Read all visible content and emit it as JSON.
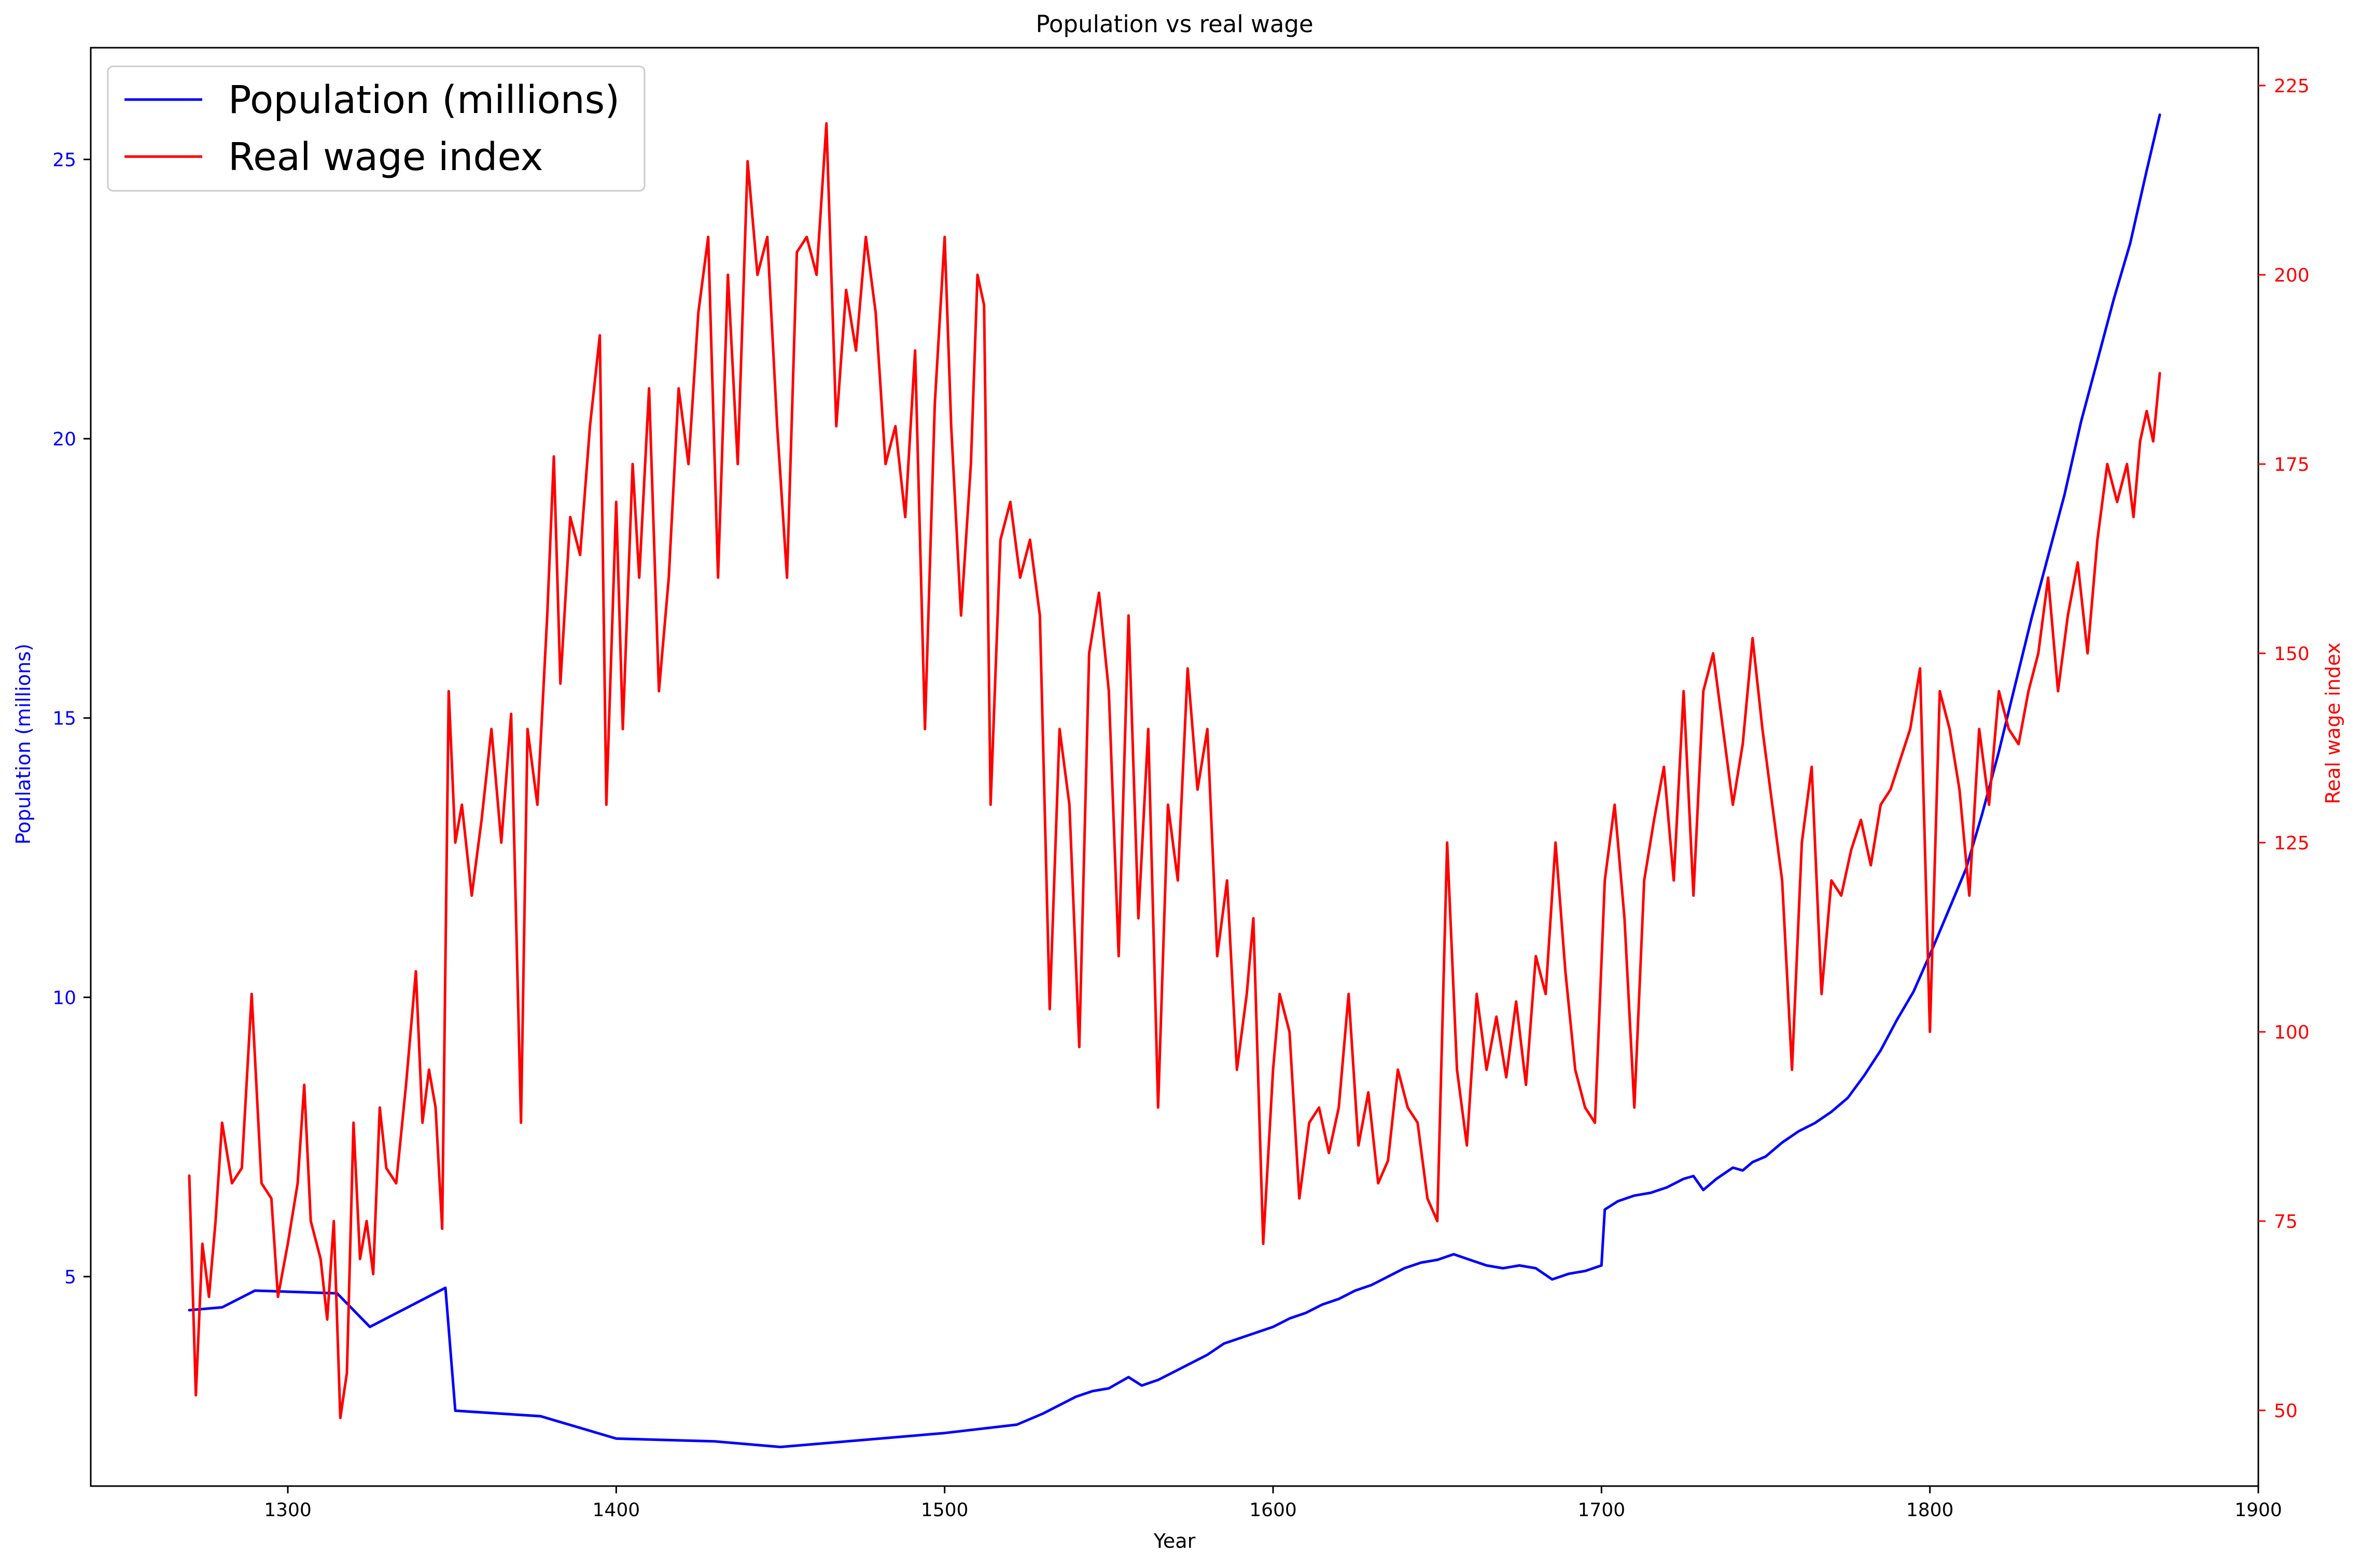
{
  "chart_data": {
    "type": "line",
    "title": "Population vs real wage",
    "xlabel": "Year",
    "y_left_label": "Population (millions)",
    "y_right_label": "Real wage index",
    "xlim": [
      1240,
      1900
    ],
    "y_left_lim": [
      1.25,
      27.0
    ],
    "y_right_lim": [
      40,
      230
    ],
    "x_ticks": [
      1300,
      1400,
      1500,
      1600,
      1700,
      1800,
      1900
    ],
    "y_left_ticks": [
      5,
      10,
      15,
      20,
      25
    ],
    "y_right_ticks": [
      50,
      75,
      100,
      125,
      150,
      175,
      200,
      225
    ],
    "legend_position": "top-left",
    "colors": {
      "population": "#0000ff",
      "wage": "#ff0000"
    },
    "series": [
      {
        "name": "Population (millions)",
        "axis": "left",
        "color": "#0000ff",
        "points": [
          [
            1270,
            4.4
          ],
          [
            1280,
            4.45
          ],
          [
            1290,
            4.75
          ],
          [
            1300,
            4.73
          ],
          [
            1315,
            4.7
          ],
          [
            1325,
            4.1
          ],
          [
            1348,
            4.8
          ],
          [
            1351,
            2.6
          ],
          [
            1377,
            2.5
          ],
          [
            1400,
            2.1
          ],
          [
            1430,
            2.05
          ],
          [
            1450,
            1.95
          ],
          [
            1500,
            2.2
          ],
          [
            1522,
            2.35
          ],
          [
            1530,
            2.55
          ],
          [
            1540,
            2.85
          ],
          [
            1545,
            2.95
          ],
          [
            1550,
            3.0
          ],
          [
            1556,
            3.2
          ],
          [
            1560,
            3.05
          ],
          [
            1565,
            3.15
          ],
          [
            1570,
            3.3
          ],
          [
            1575,
            3.45
          ],
          [
            1580,
            3.6
          ],
          [
            1585,
            3.8
          ],
          [
            1590,
            3.9
          ],
          [
            1595,
            4.0
          ],
          [
            1600,
            4.1
          ],
          [
            1605,
            4.25
          ],
          [
            1610,
            4.35
          ],
          [
            1615,
            4.5
          ],
          [
            1620,
            4.6
          ],
          [
            1625,
            4.75
          ],
          [
            1630,
            4.85
          ],
          [
            1635,
            5.0
          ],
          [
            1640,
            5.15
          ],
          [
            1645,
            5.25
          ],
          [
            1650,
            5.3
          ],
          [
            1655,
            5.4
          ],
          [
            1660,
            5.3
          ],
          [
            1665,
            5.2
          ],
          [
            1670,
            5.15
          ],
          [
            1675,
            5.2
          ],
          [
            1680,
            5.15
          ],
          [
            1685,
            4.95
          ],
          [
            1690,
            5.05
          ],
          [
            1695,
            5.1
          ],
          [
            1700,
            5.2
          ],
          [
            1701,
            6.2
          ],
          [
            1705,
            6.35
          ],
          [
            1710,
            6.45
          ],
          [
            1715,
            6.5
          ],
          [
            1720,
            6.6
          ],
          [
            1725,
            6.75
          ],
          [
            1728,
            6.8
          ],
          [
            1731,
            6.55
          ],
          [
            1735,
            6.75
          ],
          [
            1740,
            6.95
          ],
          [
            1743,
            6.9
          ],
          [
            1746,
            7.05
          ],
          [
            1750,
            7.15
          ],
          [
            1755,
            7.4
          ],
          [
            1760,
            7.6
          ],
          [
            1765,
            7.75
          ],
          [
            1770,
            7.95
          ],
          [
            1775,
            8.2
          ],
          [
            1780,
            8.6
          ],
          [
            1785,
            9.05
          ],
          [
            1790,
            9.6
          ],
          [
            1795,
            10.1
          ],
          [
            1801,
            10.9
          ],
          [
            1806,
            11.6
          ],
          [
            1811,
            12.3
          ],
          [
            1816,
            13.3
          ],
          [
            1821,
            14.4
          ],
          [
            1826,
            15.6
          ],
          [
            1831,
            16.8
          ],
          [
            1836,
            17.9
          ],
          [
            1841,
            19.0
          ],
          [
            1846,
            20.3
          ],
          [
            1851,
            21.4
          ],
          [
            1856,
            22.5
          ],
          [
            1861,
            23.5
          ],
          [
            1866,
            24.8
          ],
          [
            1870,
            25.8
          ]
        ]
      },
      {
        "name": "Real wage index",
        "axis": "right",
        "color": "#ff0000",
        "points": [
          [
            1270,
            81
          ],
          [
            1272,
            52
          ],
          [
            1274,
            72
          ],
          [
            1276,
            65
          ],
          [
            1278,
            75
          ],
          [
            1280,
            88
          ],
          [
            1283,
            80
          ],
          [
            1286,
            82
          ],
          [
            1289,
            105
          ],
          [
            1292,
            80
          ],
          [
            1295,
            78
          ],
          [
            1297,
            65
          ],
          [
            1300,
            72
          ],
          [
            1303,
            80
          ],
          [
            1305,
            93
          ],
          [
            1307,
            75
          ],
          [
            1310,
            70
          ],
          [
            1312,
            62
          ],
          [
            1314,
            75
          ],
          [
            1316,
            49
          ],
          [
            1318,
            55
          ],
          [
            1320,
            88
          ],
          [
            1322,
            70
          ],
          [
            1324,
            75
          ],
          [
            1326,
            68
          ],
          [
            1328,
            90
          ],
          [
            1330,
            82
          ],
          [
            1333,
            80
          ],
          [
            1336,
            93
          ],
          [
            1339,
            108
          ],
          [
            1341,
            88
          ],
          [
            1343,
            95
          ],
          [
            1345,
            90
          ],
          [
            1347,
            74
          ],
          [
            1349,
            145
          ],
          [
            1351,
            125
          ],
          [
            1353,
            130
          ],
          [
            1356,
            118
          ],
          [
            1359,
            128
          ],
          [
            1362,
            140
          ],
          [
            1365,
            125
          ],
          [
            1368,
            142
          ],
          [
            1371,
            88
          ],
          [
            1373,
            140
          ],
          [
            1376,
            130
          ],
          [
            1379,
            155
          ],
          [
            1381,
            176
          ],
          [
            1383,
            146
          ],
          [
            1386,
            168
          ],
          [
            1389,
            163
          ],
          [
            1392,
            180
          ],
          [
            1395,
            192
          ],
          [
            1397,
            130
          ],
          [
            1400,
            170
          ],
          [
            1402,
            140
          ],
          [
            1405,
            175
          ],
          [
            1407,
            160
          ],
          [
            1410,
            185
          ],
          [
            1413,
            145
          ],
          [
            1416,
            160
          ],
          [
            1419,
            185
          ],
          [
            1422,
            175
          ],
          [
            1425,
            195
          ],
          [
            1428,
            205
          ],
          [
            1431,
            160
          ],
          [
            1434,
            200
          ],
          [
            1437,
            175
          ],
          [
            1440,
            215
          ],
          [
            1443,
            200
          ],
          [
            1446,
            205
          ],
          [
            1449,
            180
          ],
          [
            1452,
            160
          ],
          [
            1455,
            203
          ],
          [
            1458,
            205
          ],
          [
            1461,
            200
          ],
          [
            1464,
            220
          ],
          [
            1467,
            180
          ],
          [
            1470,
            198
          ],
          [
            1473,
            190
          ],
          [
            1476,
            205
          ],
          [
            1479,
            195
          ],
          [
            1482,
            175
          ],
          [
            1485,
            180
          ],
          [
            1488,
            168
          ],
          [
            1491,
            190
          ],
          [
            1494,
            140
          ],
          [
            1497,
            183
          ],
          [
            1500,
            205
          ],
          [
            1502,
            180
          ],
          [
            1505,
            155
          ],
          [
            1508,
            175
          ],
          [
            1510,
            200
          ],
          [
            1512,
            196
          ],
          [
            1514,
            130
          ],
          [
            1517,
            165
          ],
          [
            1520,
            170
          ],
          [
            1523,
            160
          ],
          [
            1526,
            165
          ],
          [
            1529,
            155
          ],
          [
            1532,
            103
          ],
          [
            1535,
            140
          ],
          [
            1538,
            130
          ],
          [
            1541,
            98
          ],
          [
            1544,
            150
          ],
          [
            1547,
            158
          ],
          [
            1550,
            145
          ],
          [
            1553,
            110
          ],
          [
            1556,
            155
          ],
          [
            1559,
            115
          ],
          [
            1562,
            140
          ],
          [
            1565,
            90
          ],
          [
            1568,
            130
          ],
          [
            1571,
            120
          ],
          [
            1574,
            148
          ],
          [
            1577,
            132
          ],
          [
            1580,
            140
          ],
          [
            1583,
            110
          ],
          [
            1586,
            120
          ],
          [
            1589,
            95
          ],
          [
            1592,
            105
          ],
          [
            1594,
            115
          ],
          [
            1597,
            72
          ],
          [
            1600,
            95
          ],
          [
            1602,
            105
          ],
          [
            1605,
            100
          ],
          [
            1608,
            78
          ],
          [
            1611,
            88
          ],
          [
            1614,
            90
          ],
          [
            1617,
            84
          ],
          [
            1620,
            90
          ],
          [
            1623,
            105
          ],
          [
            1626,
            85
          ],
          [
            1629,
            92
          ],
          [
            1632,
            80
          ],
          [
            1635,
            83
          ],
          [
            1638,
            95
          ],
          [
            1641,
            90
          ],
          [
            1644,
            88
          ],
          [
            1647,
            78
          ],
          [
            1650,
            75
          ],
          [
            1653,
            125
          ],
          [
            1656,
            95
          ],
          [
            1659,
            85
          ],
          [
            1662,
            105
          ],
          [
            1665,
            95
          ],
          [
            1668,
            102
          ],
          [
            1671,
            94
          ],
          [
            1674,
            104
          ],
          [
            1677,
            93
          ],
          [
            1680,
            110
          ],
          [
            1683,
            105
          ],
          [
            1686,
            125
          ],
          [
            1689,
            108
          ],
          [
            1692,
            95
          ],
          [
            1695,
            90
          ],
          [
            1698,
            88
          ],
          [
            1701,
            120
          ],
          [
            1704,
            130
          ],
          [
            1707,
            115
          ],
          [
            1710,
            90
          ],
          [
            1713,
            120
          ],
          [
            1716,
            128
          ],
          [
            1719,
            135
          ],
          [
            1722,
            120
          ],
          [
            1725,
            145
          ],
          [
            1728,
            118
          ],
          [
            1731,
            145
          ],
          [
            1734,
            150
          ],
          [
            1737,
            140
          ],
          [
            1740,
            130
          ],
          [
            1743,
            138
          ],
          [
            1746,
            152
          ],
          [
            1749,
            140
          ],
          [
            1752,
            130
          ],
          [
            1755,
            120
          ],
          [
            1758,
            95
          ],
          [
            1761,
            125
          ],
          [
            1764,
            135
          ],
          [
            1767,
            105
          ],
          [
            1770,
            120
          ],
          [
            1773,
            118
          ],
          [
            1776,
            124
          ],
          [
            1779,
            128
          ],
          [
            1782,
            122
          ],
          [
            1785,
            130
          ],
          [
            1788,
            132
          ],
          [
            1791,
            136
          ],
          [
            1794,
            140
          ],
          [
            1797,
            148
          ],
          [
            1800,
            100
          ],
          [
            1803,
            145
          ],
          [
            1806,
            140
          ],
          [
            1809,
            132
          ],
          [
            1812,
            118
          ],
          [
            1815,
            140
          ],
          [
            1818,
            130
          ],
          [
            1821,
            145
          ],
          [
            1824,
            140
          ],
          [
            1827,
            138
          ],
          [
            1830,
            145
          ],
          [
            1833,
            150
          ],
          [
            1836,
            160
          ],
          [
            1839,
            145
          ],
          [
            1842,
            155
          ],
          [
            1845,
            162
          ],
          [
            1848,
            150
          ],
          [
            1851,
            165
          ],
          [
            1854,
            175
          ],
          [
            1857,
            170
          ],
          [
            1860,
            175
          ],
          [
            1862,
            168
          ],
          [
            1864,
            178
          ],
          [
            1866,
            182
          ],
          [
            1868,
            178
          ],
          [
            1870,
            187
          ]
        ]
      }
    ]
  }
}
